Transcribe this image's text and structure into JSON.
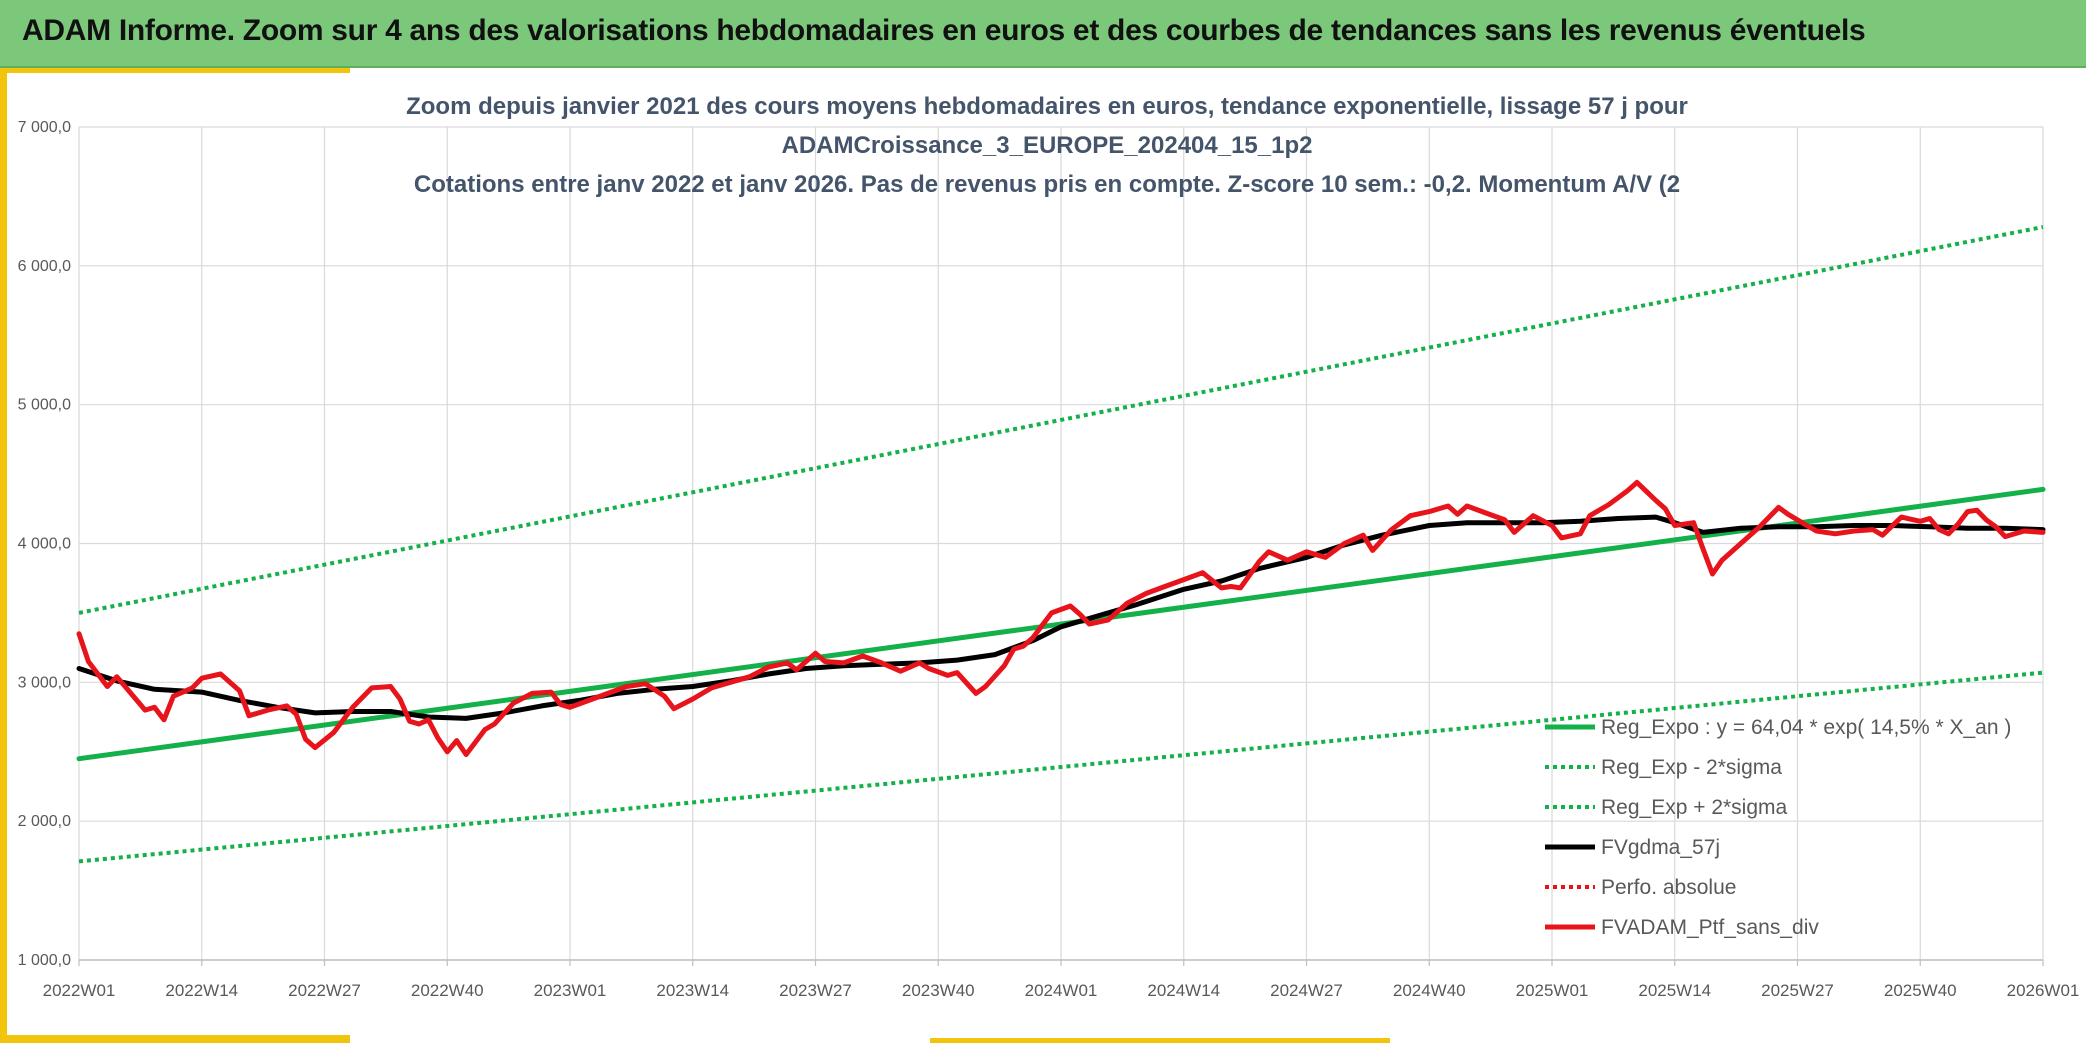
{
  "banner": {
    "title": "ADAM Informe. Zoom sur 4 ans des valorisations hebdomadaires en euros et des courbes de tendances sans les revenus éventuels"
  },
  "colors": {
    "banner_bg": "#7cc87a",
    "accent": "#f2c40c",
    "trend_green": "#14b04a",
    "portfolio_red": "#e8141b",
    "smoothed_black": "#000000",
    "title_text": "#44546a"
  },
  "chart_data": {
    "type": "line",
    "title_lines": [
      "Zoom depuis janvier 2021 des cours moyens hebdomadaires en euros, tendance exponentielle, lissage 57 j pour",
      "ADAMCroissance_3_EUROPE_202404_15_1p2",
      "Cotations entre janv 2022 et janv 2026. Pas de revenus pris en compte. Z-score 10 sem.: -0,2. Momentum A/V (2"
    ],
    "ylim": [
      1000,
      7000
    ],
    "y_ticks": [
      {
        "value": 1000,
        "label": "1 000,0"
      },
      {
        "value": 2000,
        "label": "2 000,0"
      },
      {
        "value": 3000,
        "label": "3 000,0"
      },
      {
        "value": 4000,
        "label": "4 000,0"
      },
      {
        "value": 5000,
        "label": "5 000,0"
      },
      {
        "value": 6000,
        "label": "6 000,0"
      },
      {
        "value": 7000,
        "label": "7 000,0"
      }
    ],
    "xlim": [
      0,
      208
    ],
    "x_ticks": [
      {
        "value": 0,
        "label": "2022W01"
      },
      {
        "value": 13,
        "label": "2022W14"
      },
      {
        "value": 26,
        "label": "2022W27"
      },
      {
        "value": 39,
        "label": "2022W40"
      },
      {
        "value": 52,
        "label": "2023W01"
      },
      {
        "value": 65,
        "label": "2023W14"
      },
      {
        "value": 78,
        "label": "2023W27"
      },
      {
        "value": 91,
        "label": "2023W40"
      },
      {
        "value": 104,
        "label": "2024W01"
      },
      {
        "value": 117,
        "label": "2024W14"
      },
      {
        "value": 130,
        "label": "2024W27"
      },
      {
        "value": 143,
        "label": "2024W40"
      },
      {
        "value": 156,
        "label": "2025W01"
      },
      {
        "value": 169,
        "label": "2025W14"
      },
      {
        "value": 182,
        "label": "2025W27"
      },
      {
        "value": 195,
        "label": "2025W40"
      },
      {
        "value": 208,
        "label": "2026W01"
      }
    ],
    "series": [
      {
        "name": "Reg_Expo : y = 64,04 * exp( 14,5% *  X_an )",
        "style": "solid",
        "color": "#14b04a",
        "width": 5,
        "points": [
          [
            0,
            2450
          ],
          [
            208,
            4390
          ]
        ]
      },
      {
        "name": "Reg_Exp - 2*sigma",
        "style": "dotted",
        "color": "#14b04a",
        "width": 4,
        "points": [
          [
            0,
            1710
          ],
          [
            208,
            3070
          ]
        ]
      },
      {
        "name": "Reg_Exp + 2*sigma",
        "style": "dotted",
        "color": "#14b04a",
        "width": 4,
        "points": [
          [
            0,
            3500
          ],
          [
            208,
            6280
          ]
        ]
      },
      {
        "name": "FVgdma_57j",
        "style": "solid",
        "color": "#000000",
        "width": 5,
        "points": [
          [
            0,
            3100
          ],
          [
            4,
            3010
          ],
          [
            8,
            2950
          ],
          [
            13,
            2930
          ],
          [
            17,
            2870
          ],
          [
            21,
            2820
          ],
          [
            25,
            2780
          ],
          [
            29,
            2790
          ],
          [
            33,
            2790
          ],
          [
            37,
            2750
          ],
          [
            41,
            2740
          ],
          [
            45,
            2780
          ],
          [
            49,
            2830
          ],
          [
            53,
            2870
          ],
          [
            57,
            2920
          ],
          [
            61,
            2950
          ],
          [
            65,
            2970
          ],
          [
            69,
            3010
          ],
          [
            73,
            3060
          ],
          [
            77,
            3100
          ],
          [
            81,
            3120
          ],
          [
            85,
            3130
          ],
          [
            89,
            3140
          ],
          [
            93,
            3160
          ],
          [
            97,
            3200
          ],
          [
            101,
            3300
          ],
          [
            104,
            3400
          ],
          [
            108,
            3480
          ],
          [
            112,
            3560
          ],
          [
            117,
            3670
          ],
          [
            121,
            3730
          ],
          [
            125,
            3820
          ],
          [
            130,
            3900
          ],
          [
            134,
            3990
          ],
          [
            138,
            4060
          ],
          [
            143,
            4130
          ],
          [
            147,
            4150
          ],
          [
            151,
            4150
          ],
          [
            155,
            4150
          ],
          [
            159,
            4160
          ],
          [
            163,
            4180
          ],
          [
            167,
            4190
          ],
          [
            169,
            4150
          ],
          [
            172,
            4080
          ],
          [
            176,
            4110
          ],
          [
            180,
            4120
          ],
          [
            184,
            4120
          ],
          [
            188,
            4130
          ],
          [
            192,
            4130
          ],
          [
            196,
            4120
          ],
          [
            200,
            4110
          ],
          [
            204,
            4110
          ],
          [
            208,
            4100
          ]
        ]
      },
      {
        "name": "Perfo. absolue",
        "style": "dotted",
        "color": "#e8141b",
        "width": 4,
        "points": []
      },
      {
        "name": "FVADAM_Ptf_sans_div",
        "style": "solid",
        "color": "#e8141b",
        "width": 5,
        "points": [
          [
            0,
            3350
          ],
          [
            1,
            3150
          ],
          [
            3,
            2970
          ],
          [
            4,
            3040
          ],
          [
            6,
            2880
          ],
          [
            7,
            2800
          ],
          [
            8,
            2820
          ],
          [
            9,
            2730
          ],
          [
            10,
            2900
          ],
          [
            12,
            2960
          ],
          [
            13,
            3030
          ],
          [
            15,
            3060
          ],
          [
            17,
            2940
          ],
          [
            18,
            2760
          ],
          [
            20,
            2800
          ],
          [
            22,
            2830
          ],
          [
            23,
            2770
          ],
          [
            24,
            2590
          ],
          [
            25,
            2530
          ],
          [
            27,
            2640
          ],
          [
            29,
            2820
          ],
          [
            31,
            2960
          ],
          [
            33,
            2970
          ],
          [
            34,
            2880
          ],
          [
            35,
            2720
          ],
          [
            36,
            2700
          ],
          [
            37,
            2730
          ],
          [
            38,
            2600
          ],
          [
            39,
            2500
          ],
          [
            40,
            2580
          ],
          [
            41,
            2480
          ],
          [
            43,
            2660
          ],
          [
            44,
            2700
          ],
          [
            46,
            2850
          ],
          [
            48,
            2920
          ],
          [
            50,
            2930
          ],
          [
            51,
            2840
          ],
          [
            52,
            2820
          ],
          [
            54,
            2870
          ],
          [
            56,
            2920
          ],
          [
            58,
            2970
          ],
          [
            60,
            2990
          ],
          [
            62,
            2900
          ],
          [
            63,
            2810
          ],
          [
            65,
            2880
          ],
          [
            67,
            2960
          ],
          [
            69,
            3000
          ],
          [
            71,
            3040
          ],
          [
            73,
            3110
          ],
          [
            75,
            3140
          ],
          [
            76,
            3090
          ],
          [
            78,
            3210
          ],
          [
            79,
            3150
          ],
          [
            81,
            3140
          ],
          [
            83,
            3190
          ],
          [
            85,
            3140
          ],
          [
            87,
            3080
          ],
          [
            89,
            3140
          ],
          [
            90,
            3100
          ],
          [
            92,
            3050
          ],
          [
            93,
            3070
          ],
          [
            95,
            2920
          ],
          [
            96,
            2970
          ],
          [
            98,
            3120
          ],
          [
            99,
            3240
          ],
          [
            100,
            3260
          ],
          [
            101,
            3320
          ],
          [
            103,
            3500
          ],
          [
            105,
            3550
          ],
          [
            106,
            3490
          ],
          [
            107,
            3420
          ],
          [
            109,
            3450
          ],
          [
            111,
            3570
          ],
          [
            113,
            3640
          ],
          [
            115,
            3690
          ],
          [
            117,
            3740
          ],
          [
            119,
            3790
          ],
          [
            121,
            3680
          ],
          [
            122,
            3690
          ],
          [
            123,
            3680
          ],
          [
            125,
            3870
          ],
          [
            126,
            3940
          ],
          [
            128,
            3880
          ],
          [
            130,
            3940
          ],
          [
            132,
            3900
          ],
          [
            134,
            4000
          ],
          [
            136,
            4060
          ],
          [
            137,
            3950
          ],
          [
            139,
            4100
          ],
          [
            141,
            4200
          ],
          [
            143,
            4230
          ],
          [
            145,
            4270
          ],
          [
            146,
            4210
          ],
          [
            147,
            4270
          ],
          [
            149,
            4220
          ],
          [
            151,
            4170
          ],
          [
            152,
            4080
          ],
          [
            154,
            4200
          ],
          [
            156,
            4130
          ],
          [
            157,
            4040
          ],
          [
            159,
            4070
          ],
          [
            160,
            4200
          ],
          [
            162,
            4280
          ],
          [
            164,
            4380
          ],
          [
            165,
            4440
          ],
          [
            167,
            4310
          ],
          [
            168,
            4250
          ],
          [
            169,
            4130
          ],
          [
            171,
            4150
          ],
          [
            172,
            3960
          ],
          [
            173,
            3780
          ],
          [
            174,
            3880
          ],
          [
            176,
            4000
          ],
          [
            178,
            4120
          ],
          [
            180,
            4260
          ],
          [
            181,
            4210
          ],
          [
            182,
            4170
          ],
          [
            183,
            4130
          ],
          [
            184,
            4090
          ],
          [
            186,
            4070
          ],
          [
            188,
            4090
          ],
          [
            190,
            4100
          ],
          [
            191,
            4060
          ],
          [
            193,
            4190
          ],
          [
            195,
            4160
          ],
          [
            196,
            4180
          ],
          [
            197,
            4100
          ],
          [
            198,
            4070
          ],
          [
            199,
            4140
          ],
          [
            200,
            4230
          ],
          [
            201,
            4240
          ],
          [
            202,
            4170
          ],
          [
            203,
            4120
          ],
          [
            204,
            4050
          ],
          [
            206,
            4090
          ],
          [
            208,
            4080
          ]
        ]
      }
    ],
    "legend_position": "bottom-right"
  }
}
